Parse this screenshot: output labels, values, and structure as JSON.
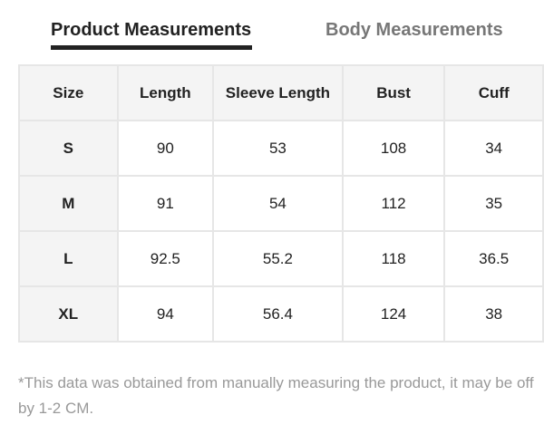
{
  "tabs": [
    {
      "label": "Product Measurements",
      "active": true
    },
    {
      "label": "Body Measurements",
      "active": false
    }
  ],
  "table": {
    "headers": [
      "Size",
      "Length",
      "Sleeve Length",
      "Bust",
      "Cuff"
    ],
    "rows": [
      [
        "S",
        "90",
        "53",
        "108",
        "34"
      ],
      [
        "M",
        "91",
        "54",
        "112",
        "35"
      ],
      [
        "L",
        "92.5",
        "55.2",
        "118",
        "36.5"
      ],
      [
        "XL",
        "94",
        "56.4",
        "124",
        "38"
      ]
    ]
  },
  "note": "*This data was obtained from manually measuring the product, it may be off by 1-2 CM."
}
